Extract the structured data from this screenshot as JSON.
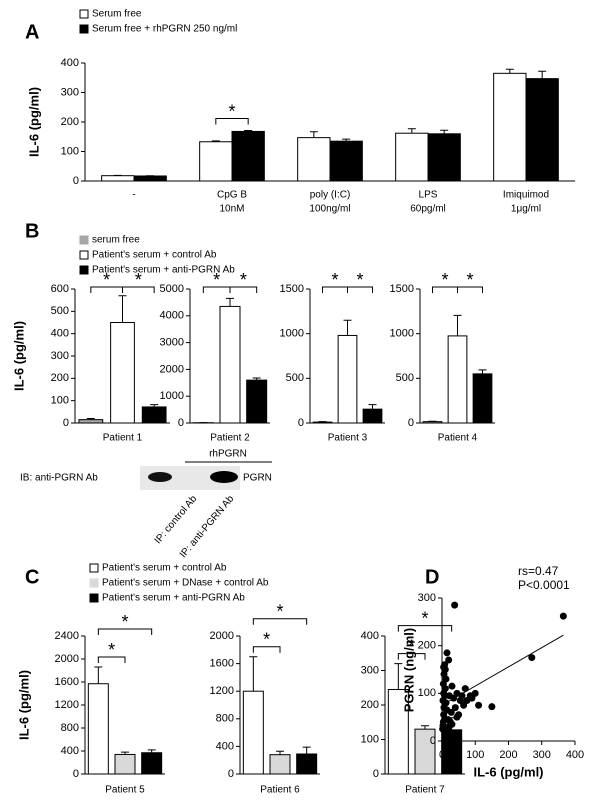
{
  "chart_data": [
    {
      "type": "bar",
      "panel": "A",
      "ylabel": "IL-6 (pg/ml)",
      "categories": [
        [
          "-"
        ],
        [
          "CpG B",
          "10nM"
        ],
        [
          "poly (I:C)",
          "100ng/ml"
        ],
        [
          "LPS",
          "60pg/ml"
        ],
        [
          "Imiquimod",
          "1μg/ml"
        ]
      ],
      "series": [
        {
          "name": "Serum free",
          "color": "#ffffff",
          "values": [
            18,
            133,
            147,
            162,
            365
          ],
          "errors": [
            1,
            3,
            20,
            15,
            14
          ]
        },
        {
          "name": "Serum free + rhPGRN 250 ng/ml",
          "color": "#000000",
          "values": [
            17,
            168,
            135,
            160,
            347
          ],
          "errors": [
            1,
            3,
            7,
            12,
            25
          ]
        }
      ],
      "ylim": [
        0,
        400
      ],
      "yticks": [
        0,
        100,
        200,
        300,
        400
      ],
      "annotations": [
        "*"
      ]
    },
    {
      "type": "bar",
      "panel": "B",
      "ylabel": "IL-6 (pg/ml)",
      "categories": [
        "Patient 1",
        "Patient 2",
        "Patient 3",
        "Patient 4"
      ],
      "series": [
        {
          "name": "serum free",
          "color": "#a6a6a6",
          "values": [
            15,
            10,
            10,
            15
          ],
          "errors": [
            5,
            5,
            5,
            5
          ]
        },
        {
          "name": "Patient's serum + control Ab",
          "color": "#ffffff",
          "values": [
            450,
            4350,
            980,
            975
          ],
          "errors": [
            120,
            300,
            170,
            230
          ]
        },
        {
          "name": "Patient's serum + anti-PGRN Ab",
          "color": "#000000",
          "values": [
            72,
            1600,
            155,
            550
          ],
          "errors": [
            10,
            80,
            50,
            45
          ]
        }
      ],
      "panels": [
        {
          "ylim": [
            0,
            600
          ],
          "yticks": [
            0,
            100,
            200,
            300,
            400,
            500,
            600
          ],
          "annotations": [
            "*",
            "*"
          ]
        },
        {
          "ylim": [
            0,
            5000
          ],
          "yticks": [
            0,
            1000,
            2000,
            3000,
            4000,
            5000
          ],
          "annotations": [
            "*",
            "*"
          ]
        },
        {
          "ylim": [
            0,
            1500
          ],
          "yticks": [
            0,
            500,
            1000,
            1500
          ],
          "annotations": [
            "*",
            "*"
          ]
        },
        {
          "ylim": [
            0,
            1500
          ],
          "yticks": [
            0,
            500,
            1000,
            1500
          ],
          "annotations": [
            "*",
            "*"
          ]
        }
      ]
    },
    {
      "type": "bar",
      "panel": "C",
      "ylabel": "IL-6 (pg/ml)",
      "categories": [
        "Patient 5",
        "Patient 6",
        "Patient 7"
      ],
      "series": [
        {
          "name": "Patient's serum + control Ab",
          "color": "#ffffff",
          "values": [
            1570,
            1200,
            245
          ],
          "errors": [
            290,
            500,
            75
          ]
        },
        {
          "name": "Patient's serum + DNase + control Ab",
          "color": "#d9d9d9",
          "values": [
            340,
            280,
            130
          ],
          "errors": [
            40,
            50,
            10
          ]
        },
        {
          "name": "Patient's serum + anti-PGRN Ab",
          "color": "#000000",
          "values": [
            370,
            290,
            128
          ],
          "errors": [
            50,
            100,
            35
          ]
        }
      ],
      "panels": [
        {
          "ylim": [
            0,
            2400
          ],
          "yticks": [
            0,
            400,
            800,
            1200,
            1600,
            2000,
            2400
          ],
          "annotations": [
            "*",
            "*"
          ]
        },
        {
          "ylim": [
            0,
            2000
          ],
          "yticks": [
            0,
            400,
            800,
            1200,
            1600,
            2000
          ],
          "annotations": [
            "*",
            "*"
          ]
        },
        {
          "ylim": [
            0,
            400
          ],
          "yticks": [
            0,
            100,
            200,
            300,
            400
          ],
          "annotations": [
            "*",
            "*"
          ]
        }
      ]
    },
    {
      "type": "scatter",
      "panel": "D",
      "xlabel": "IL-6 (pg/ml)",
      "ylabel": "PGRN (ng/ml)",
      "color": "#000000",
      "x": [
        2,
        3,
        4,
        5,
        6,
        3,
        5,
        4,
        6,
        5,
        8,
        10,
        12,
        10,
        8,
        12,
        15,
        18,
        20,
        25,
        22,
        28,
        30,
        35,
        40,
        45,
        38,
        50,
        55,
        60,
        65,
        70,
        75,
        85,
        90,
        100,
        110,
        150,
        270,
        365,
        15,
        20,
        8,
        30,
        45
      ],
      "y": [
        25,
        32,
        40,
        55,
        70,
        85,
        100,
        120,
        140,
        155,
        160,
        150,
        130,
        110,
        95,
        80,
        65,
        45,
        30,
        40,
        95,
        60,
        115,
        90,
        70,
        100,
        285,
        55,
        85,
        95,
        75,
        110,
        85,
        95,
        90,
        100,
        75,
        72,
        175,
        262,
        185,
        170,
        45,
        35,
        50
      ],
      "xlim": [
        0,
        400
      ],
      "xticks": [
        0,
        100,
        200,
        300,
        400
      ],
      "ylim": [
        0,
        300
      ],
      "yticks": [
        0,
        100,
        200,
        300
      ],
      "fit": {
        "x": [
          0,
          365
        ],
        "y": [
          75,
          222
        ]
      },
      "annotations": [
        "rs=0.47",
        "P<0.0001"
      ]
    }
  ],
  "blot": {
    "treatment": "rhPGRN",
    "probe": "IB: anti-PGRN Ab",
    "band": "PGRN",
    "lanes": [
      "IP: control Ab",
      "IP: anti-PGRN Ab"
    ]
  }
}
